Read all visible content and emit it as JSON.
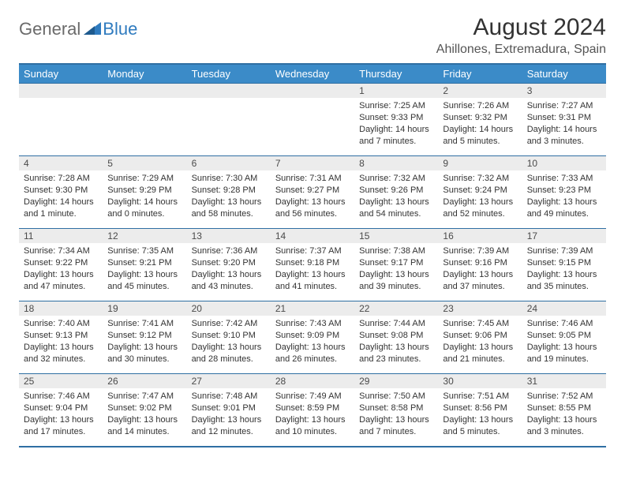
{
  "logo": {
    "word1": "General",
    "word2": "Blue"
  },
  "title": "August 2024",
  "location": "Ahillones, Extremadura, Spain",
  "colors": {
    "header_bg": "#3b8bc8",
    "header_text": "#ffffff",
    "border": "#2f6fa3",
    "daynum_bg": "#ececec",
    "body_text": "#333333",
    "logo_gray": "#6a6a6a",
    "logo_blue": "#2f7bbf"
  },
  "day_names": [
    "Sunday",
    "Monday",
    "Tuesday",
    "Wednesday",
    "Thursday",
    "Friday",
    "Saturday"
  ],
  "weeks": [
    [
      {
        "num": "",
        "sunrise": "",
        "sunset": "",
        "daylight": ""
      },
      {
        "num": "",
        "sunrise": "",
        "sunset": "",
        "daylight": ""
      },
      {
        "num": "",
        "sunrise": "",
        "sunset": "",
        "daylight": ""
      },
      {
        "num": "",
        "sunrise": "",
        "sunset": "",
        "daylight": ""
      },
      {
        "num": "1",
        "sunrise": "Sunrise: 7:25 AM",
        "sunset": "Sunset: 9:33 PM",
        "daylight": "Daylight: 14 hours and 7 minutes."
      },
      {
        "num": "2",
        "sunrise": "Sunrise: 7:26 AM",
        "sunset": "Sunset: 9:32 PM",
        "daylight": "Daylight: 14 hours and 5 minutes."
      },
      {
        "num": "3",
        "sunrise": "Sunrise: 7:27 AM",
        "sunset": "Sunset: 9:31 PM",
        "daylight": "Daylight: 14 hours and 3 minutes."
      }
    ],
    [
      {
        "num": "4",
        "sunrise": "Sunrise: 7:28 AM",
        "sunset": "Sunset: 9:30 PM",
        "daylight": "Daylight: 14 hours and 1 minute."
      },
      {
        "num": "5",
        "sunrise": "Sunrise: 7:29 AM",
        "sunset": "Sunset: 9:29 PM",
        "daylight": "Daylight: 14 hours and 0 minutes."
      },
      {
        "num": "6",
        "sunrise": "Sunrise: 7:30 AM",
        "sunset": "Sunset: 9:28 PM",
        "daylight": "Daylight: 13 hours and 58 minutes."
      },
      {
        "num": "7",
        "sunrise": "Sunrise: 7:31 AM",
        "sunset": "Sunset: 9:27 PM",
        "daylight": "Daylight: 13 hours and 56 minutes."
      },
      {
        "num": "8",
        "sunrise": "Sunrise: 7:32 AM",
        "sunset": "Sunset: 9:26 PM",
        "daylight": "Daylight: 13 hours and 54 minutes."
      },
      {
        "num": "9",
        "sunrise": "Sunrise: 7:32 AM",
        "sunset": "Sunset: 9:24 PM",
        "daylight": "Daylight: 13 hours and 52 minutes."
      },
      {
        "num": "10",
        "sunrise": "Sunrise: 7:33 AM",
        "sunset": "Sunset: 9:23 PM",
        "daylight": "Daylight: 13 hours and 49 minutes."
      }
    ],
    [
      {
        "num": "11",
        "sunrise": "Sunrise: 7:34 AM",
        "sunset": "Sunset: 9:22 PM",
        "daylight": "Daylight: 13 hours and 47 minutes."
      },
      {
        "num": "12",
        "sunrise": "Sunrise: 7:35 AM",
        "sunset": "Sunset: 9:21 PM",
        "daylight": "Daylight: 13 hours and 45 minutes."
      },
      {
        "num": "13",
        "sunrise": "Sunrise: 7:36 AM",
        "sunset": "Sunset: 9:20 PM",
        "daylight": "Daylight: 13 hours and 43 minutes."
      },
      {
        "num": "14",
        "sunrise": "Sunrise: 7:37 AM",
        "sunset": "Sunset: 9:18 PM",
        "daylight": "Daylight: 13 hours and 41 minutes."
      },
      {
        "num": "15",
        "sunrise": "Sunrise: 7:38 AM",
        "sunset": "Sunset: 9:17 PM",
        "daylight": "Daylight: 13 hours and 39 minutes."
      },
      {
        "num": "16",
        "sunrise": "Sunrise: 7:39 AM",
        "sunset": "Sunset: 9:16 PM",
        "daylight": "Daylight: 13 hours and 37 minutes."
      },
      {
        "num": "17",
        "sunrise": "Sunrise: 7:39 AM",
        "sunset": "Sunset: 9:15 PM",
        "daylight": "Daylight: 13 hours and 35 minutes."
      }
    ],
    [
      {
        "num": "18",
        "sunrise": "Sunrise: 7:40 AM",
        "sunset": "Sunset: 9:13 PM",
        "daylight": "Daylight: 13 hours and 32 minutes."
      },
      {
        "num": "19",
        "sunrise": "Sunrise: 7:41 AM",
        "sunset": "Sunset: 9:12 PM",
        "daylight": "Daylight: 13 hours and 30 minutes."
      },
      {
        "num": "20",
        "sunrise": "Sunrise: 7:42 AM",
        "sunset": "Sunset: 9:10 PM",
        "daylight": "Daylight: 13 hours and 28 minutes."
      },
      {
        "num": "21",
        "sunrise": "Sunrise: 7:43 AM",
        "sunset": "Sunset: 9:09 PM",
        "daylight": "Daylight: 13 hours and 26 minutes."
      },
      {
        "num": "22",
        "sunrise": "Sunrise: 7:44 AM",
        "sunset": "Sunset: 9:08 PM",
        "daylight": "Daylight: 13 hours and 23 minutes."
      },
      {
        "num": "23",
        "sunrise": "Sunrise: 7:45 AM",
        "sunset": "Sunset: 9:06 PM",
        "daylight": "Daylight: 13 hours and 21 minutes."
      },
      {
        "num": "24",
        "sunrise": "Sunrise: 7:46 AM",
        "sunset": "Sunset: 9:05 PM",
        "daylight": "Daylight: 13 hours and 19 minutes."
      }
    ],
    [
      {
        "num": "25",
        "sunrise": "Sunrise: 7:46 AM",
        "sunset": "Sunset: 9:04 PM",
        "daylight": "Daylight: 13 hours and 17 minutes."
      },
      {
        "num": "26",
        "sunrise": "Sunrise: 7:47 AM",
        "sunset": "Sunset: 9:02 PM",
        "daylight": "Daylight: 13 hours and 14 minutes."
      },
      {
        "num": "27",
        "sunrise": "Sunrise: 7:48 AM",
        "sunset": "Sunset: 9:01 PM",
        "daylight": "Daylight: 13 hours and 12 minutes."
      },
      {
        "num": "28",
        "sunrise": "Sunrise: 7:49 AM",
        "sunset": "Sunset: 8:59 PM",
        "daylight": "Daylight: 13 hours and 10 minutes."
      },
      {
        "num": "29",
        "sunrise": "Sunrise: 7:50 AM",
        "sunset": "Sunset: 8:58 PM",
        "daylight": "Daylight: 13 hours and 7 minutes."
      },
      {
        "num": "30",
        "sunrise": "Sunrise: 7:51 AM",
        "sunset": "Sunset: 8:56 PM",
        "daylight": "Daylight: 13 hours and 5 minutes."
      },
      {
        "num": "31",
        "sunrise": "Sunrise: 7:52 AM",
        "sunset": "Sunset: 8:55 PM",
        "daylight": "Daylight: 13 hours and 3 minutes."
      }
    ]
  ]
}
